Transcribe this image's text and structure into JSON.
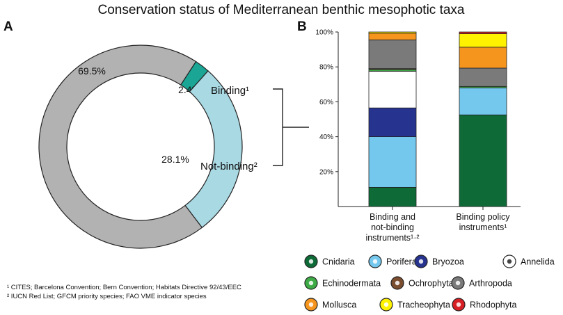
{
  "title": "Conservation status of Mediterranean benthic mesophotic taxa",
  "panel_a_label": "A",
  "panel_b_label": "B",
  "footnotes": [
    "¹ CITES; Barcelona Convention; Bern Convention; Habitats Directive 92/43/EEC",
    "² IUCN Red List; GFCM priority species; FAO VME indicator species"
  ],
  "bracket_labels": {
    "binding": "Binding¹",
    "not_binding": "Not-binding²"
  },
  "colors": {
    "Cnidaria": "#0e6b37",
    "Porifera": "#74c8ee",
    "Bryozoa": "#26338f",
    "Annelida": "#ffffff",
    "Echinodermata": "#3eab47",
    "Ochrophyta": "#7a4d2f",
    "Arthropoda": "#7a7a7a",
    "Mollusca": "#f5951e",
    "Tracheophyta": "#fff200",
    "Rhodophyta": "#d71f26"
  },
  "chart_data": [
    {
      "type": "pie",
      "panel": "A",
      "donut": true,
      "slices": [
        {
          "label": "Binding¹",
          "value": 2.4,
          "value_label": "2.4%",
          "color": "#1aa594"
        },
        {
          "label": "Not-binding²",
          "value": 28.1,
          "value_label": "28.1%",
          "color": "#a9d9e3"
        },
        {
          "label": "",
          "value": 69.5,
          "value_label": "69.5%",
          "color": "#b3b2b2"
        }
      ]
    },
    {
      "type": "bar",
      "panel": "B",
      "stacked": true,
      "categories": [
        "Binding and not-binding instruments¹·²",
        "Binding policy instruments¹"
      ],
      "category_lines": [
        [
          "Binding and",
          "not-binding",
          "instruments¹·²"
        ],
        [
          "Binding policy",
          "instruments¹"
        ]
      ],
      "ylim": [
        0,
        100
      ],
      "yticks": [
        20,
        40,
        60,
        80,
        100
      ],
      "ytick_labels": [
        "20%",
        "40%",
        "60%",
        "80%",
        "100%"
      ],
      "series": [
        {
          "name": "Cnidaria",
          "values": [
            11.0,
            52.5
          ]
        },
        {
          "name": "Porifera",
          "values": [
            29.0,
            15.5
          ]
        },
        {
          "name": "Bryozoa",
          "values": [
            16.5,
            0
          ]
        },
        {
          "name": "Annelida",
          "values": [
            21.0,
            0
          ]
        },
        {
          "name": "Echinodermata",
          "values": [
            1.0,
            0.8
          ]
        },
        {
          "name": "Ochrophyta",
          "values": [
            0.5,
            0
          ]
        },
        {
          "name": "Arthropoda",
          "values": [
            16.5,
            10.5
          ]
        },
        {
          "name": "Mollusca",
          "values": [
            3.8,
            12.0
          ]
        },
        {
          "name": "Tracheophyta",
          "values": [
            0.7,
            7.7
          ]
        },
        {
          "name": "Rhodophyta",
          "values": [
            0,
            1.0
          ]
        }
      ],
      "legend": {
        "placement": "bottom",
        "rows": [
          [
            "Cnidaria",
            "Porifera",
            "Bryozoa",
            "Annelida"
          ],
          [
            "Echinodermata",
            "Ochrophyta",
            "Arthropoda"
          ],
          [
            "Mollusca",
            "Tracheophyta",
            "Rhodophyta"
          ]
        ]
      }
    }
  ]
}
